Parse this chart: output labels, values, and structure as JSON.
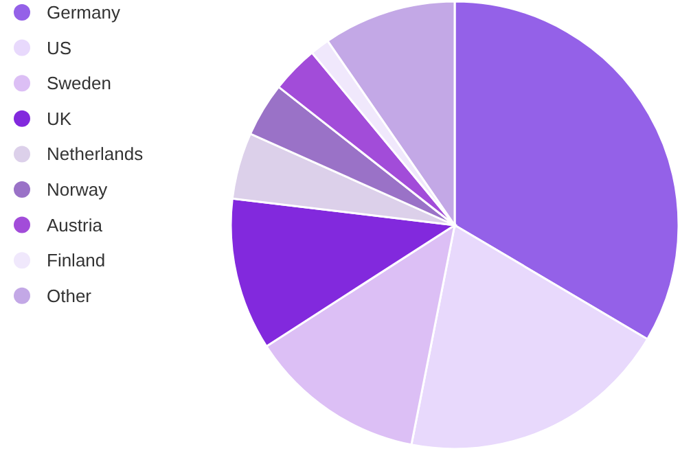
{
  "chart_data": {
    "type": "pie",
    "categories": [
      "Germany",
      "US",
      "Sweden",
      "UK",
      "Netherlands",
      "Norway",
      "Austria",
      "Finland",
      "Other"
    ],
    "values": [
      33.5,
      19.6,
      12.8,
      11,
      4.8,
      3.9,
      3.4,
      1.4,
      9.6
    ],
    "colors": [
      "#9461e8",
      "#e8d9fc",
      "#dcbff5",
      "#8229dd",
      "#dcd0ea",
      "#9a72c7",
      "#a24cd9",
      "#f0e8fc",
      "#c3a8e6"
    ],
    "legend": "top left"
  }
}
